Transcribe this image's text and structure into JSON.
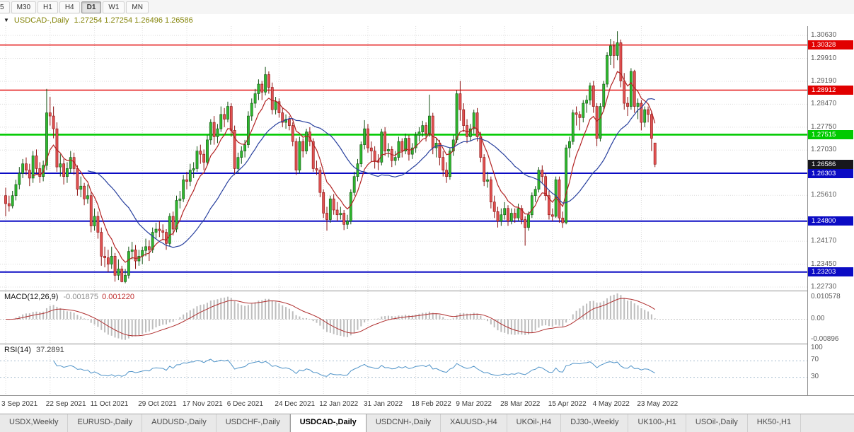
{
  "header": {
    "symbol_label": "USDCAD-,Daily",
    "ohlc": "1.27254 1.27254 1.26496 1.26586"
  },
  "toolbar": {
    "timeframes": [
      "5",
      "M30",
      "H1",
      "H4",
      "D1",
      "W1",
      "MN"
    ],
    "active": "D1"
  },
  "chart_data": {
    "type": "candlestick",
    "symbol": "USDCAD",
    "timeframe": "Daily",
    "range": {
      "min": 1.2262,
      "max": 1.3092
    },
    "axis_labels": [
      "1.30630",
      "1.29910",
      "1.29190",
      "1.28470",
      "1.27750",
      "1.27030",
      "1.25610",
      "1.24170",
      "1.23450",
      "1.22730"
    ],
    "grid_extra": [
      1.2631,
      1.2489
    ],
    "ticks": [
      [
        0,
        "3 Sep 2021"
      ],
      [
        13,
        "22 Sep 2021"
      ],
      [
        26,
        "11 Oct 2021"
      ],
      [
        40,
        "29 Oct 2021"
      ],
      [
        53,
        "17 Nov 2021"
      ],
      [
        66,
        "6 Dec 2021"
      ],
      [
        80,
        "24 Dec 2021"
      ],
      [
        93,
        "12 Jan 2022"
      ],
      [
        106,
        "31 Jan 2022"
      ],
      [
        120,
        "18 Feb 2022"
      ],
      [
        133,
        "9 Mar 2022"
      ],
      [
        146,
        "28 Mar 2022"
      ],
      [
        160,
        "15 Apr 2022"
      ],
      [
        173,
        "4 May 2022"
      ],
      [
        186,
        "23 May 2022"
      ]
    ],
    "hlines": [
      {
        "price": 1.30328,
        "label": "1.30328",
        "color": "#e10000",
        "width": 1.4
      },
      {
        "price": 1.28912,
        "label": "1.28912",
        "color": "#e10000",
        "width": 1.4
      },
      {
        "price": 1.27515,
        "label": "1.27515",
        "color": "#00ca00",
        "width": 2.6
      },
      {
        "price": 1.26303,
        "label": "1.26303",
        "color": "#0b0bc4",
        "width": 2
      },
      {
        "price": 1.248,
        "label": "1.24800",
        "color": "#0b0bc4",
        "width": 2
      },
      {
        "price": 1.23203,
        "label": "1.23203",
        "color": "#0b0bc4",
        "width": 2
      }
    ],
    "current_price": {
      "price": 1.26586,
      "label": "1.26586",
      "color": "#17171c"
    },
    "ma": {
      "fast": {
        "period": 8,
        "color": "#b22222"
      },
      "slow": {
        "period": 25,
        "color": "#28409e"
      }
    },
    "up_color": "#2eb82e",
    "up_border": "#145214",
    "down_color": "#e05252",
    "down_border": "#8c1010",
    "candles": [
      [
        1.256,
        1.2585,
        1.2495,
        1.2535
      ],
      [
        1.2535,
        1.256,
        1.251,
        1.2528
      ],
      [
        1.2528,
        1.2575,
        1.252,
        1.256
      ],
      [
        1.256,
        1.261,
        1.2545,
        1.2595
      ],
      [
        1.2595,
        1.265,
        1.258,
        1.263
      ],
      [
        1.263,
        1.2675,
        1.2615,
        1.266
      ],
      [
        1.266,
        1.268,
        1.2625,
        1.264
      ],
      [
        1.264,
        1.266,
        1.259,
        1.2615
      ],
      [
        1.2615,
        1.27,
        1.26,
        1.2685
      ],
      [
        1.2685,
        1.2705,
        1.263,
        1.2645
      ],
      [
        1.2645,
        1.2665,
        1.26,
        1.262
      ],
      [
        1.262,
        1.267,
        1.2605,
        1.2655
      ],
      [
        1.2655,
        1.2895,
        1.264,
        1.282
      ],
      [
        1.282,
        1.287,
        1.278,
        1.281
      ],
      [
        1.281,
        1.284,
        1.274,
        1.277
      ],
      [
        1.277,
        1.279,
        1.2635,
        1.265
      ],
      [
        1.265,
        1.269,
        1.262,
        1.266
      ],
      [
        1.266,
        1.2675,
        1.2595,
        1.262
      ],
      [
        1.262,
        1.2665,
        1.26,
        1.2645
      ],
      [
        1.2645,
        1.27,
        1.263,
        1.268
      ],
      [
        1.268,
        1.2695,
        1.2625,
        1.2645
      ],
      [
        1.2645,
        1.2655,
        1.256,
        1.258
      ],
      [
        1.258,
        1.262,
        1.2555,
        1.259
      ],
      [
        1.259,
        1.26,
        1.253,
        1.255
      ],
      [
        1.255,
        1.2595,
        1.2535,
        1.256
      ],
      [
        1.256,
        1.257,
        1.2445,
        1.2465
      ],
      [
        1.2465,
        1.252,
        1.245,
        1.2495
      ],
      [
        1.2495,
        1.251,
        1.2425,
        1.2445
      ],
      [
        1.2445,
        1.246,
        1.234,
        1.237
      ],
      [
        1.237,
        1.24,
        1.2335,
        1.2365
      ],
      [
        1.2365,
        1.239,
        1.232,
        1.2345
      ],
      [
        1.2345,
        1.24,
        1.233,
        1.237
      ],
      [
        1.237,
        1.238,
        1.229,
        1.231
      ],
      [
        1.231,
        1.236,
        1.2295,
        1.233
      ],
      [
        1.233,
        1.234,
        1.2288,
        1.229
      ],
      [
        1.229,
        1.233,
        1.2285,
        1.231
      ],
      [
        1.231,
        1.24,
        1.23,
        1.2385
      ],
      [
        1.2385,
        1.2415,
        1.236,
        1.239
      ],
      [
        1.239,
        1.2405,
        1.233,
        1.2355
      ],
      [
        1.2355,
        1.239,
        1.234,
        1.237
      ],
      [
        1.237,
        1.24,
        1.2345,
        1.2388
      ],
      [
        1.2388,
        1.2425,
        1.237,
        1.24
      ],
      [
        1.24,
        1.242,
        1.2355,
        1.239
      ],
      [
        1.239,
        1.246,
        1.238,
        1.2445
      ],
      [
        1.2445,
        1.2475,
        1.2425,
        1.2455
      ],
      [
        1.2455,
        1.248,
        1.243,
        1.245
      ],
      [
        1.245,
        1.247,
        1.242,
        1.2445
      ],
      [
        1.2445,
        1.2455,
        1.239,
        1.241
      ],
      [
        1.241,
        1.2505,
        1.24,
        1.2495
      ],
      [
        1.2495,
        1.251,
        1.2435,
        1.2455
      ],
      [
        1.2455,
        1.256,
        1.2445,
        1.2545
      ],
      [
        1.2545,
        1.2575,
        1.252,
        1.255
      ],
      [
        1.255,
        1.2625,
        1.254,
        1.261
      ],
      [
        1.261,
        1.2635,
        1.258,
        1.2605
      ],
      [
        1.2605,
        1.266,
        1.259,
        1.264
      ],
      [
        1.264,
        1.2665,
        1.2615,
        1.2645
      ],
      [
        1.2645,
        1.2715,
        1.2635,
        1.27
      ],
      [
        1.27,
        1.272,
        1.266,
        1.269
      ],
      [
        1.269,
        1.2705,
        1.264,
        1.2665
      ],
      [
        1.2665,
        1.275,
        1.2655,
        1.2735
      ],
      [
        1.2735,
        1.28,
        1.272,
        1.279
      ],
      [
        1.279,
        1.281,
        1.272,
        1.2745
      ],
      [
        1.2745,
        1.2785,
        1.2725,
        1.277
      ],
      [
        1.277,
        1.284,
        1.276,
        1.2815
      ],
      [
        1.2815,
        1.2835,
        1.2775,
        1.28
      ],
      [
        1.28,
        1.2855,
        1.279,
        1.284
      ],
      [
        1.284,
        1.285,
        1.2745,
        1.2765
      ],
      [
        1.2765,
        1.278,
        1.2625,
        1.2645
      ],
      [
        1.2645,
        1.2695,
        1.263,
        1.268
      ],
      [
        1.268,
        1.2715,
        1.266,
        1.27
      ],
      [
        1.27,
        1.2735,
        1.268,
        1.272
      ],
      [
        1.272,
        1.2825,
        1.271,
        1.281
      ],
      [
        1.281,
        1.2865,
        1.2795,
        1.285
      ],
      [
        1.285,
        1.2895,
        1.2835,
        1.288
      ],
      [
        1.288,
        1.2925,
        1.286,
        1.291
      ],
      [
        1.291,
        1.292,
        1.286,
        1.2885
      ],
      [
        1.2885,
        1.2964,
        1.2875,
        1.294
      ],
      [
        1.294,
        1.295,
        1.288,
        1.29
      ],
      [
        1.29,
        1.2915,
        1.2815,
        1.283
      ],
      [
        1.283,
        1.287,
        1.2815,
        1.2855
      ],
      [
        1.2855,
        1.2865,
        1.2805,
        1.282
      ],
      [
        1.282,
        1.2835,
        1.2775,
        1.279
      ],
      [
        1.279,
        1.2815,
        1.277,
        1.28
      ],
      [
        1.28,
        1.281,
        1.2765,
        1.278
      ],
      [
        1.278,
        1.279,
        1.2715,
        1.273
      ],
      [
        1.273,
        1.274,
        1.2625,
        1.264
      ],
      [
        1.264,
        1.2745,
        1.263,
        1.273
      ],
      [
        1.273,
        1.274,
        1.268,
        1.27
      ],
      [
        1.27,
        1.277,
        1.269,
        1.276
      ],
      [
        1.276,
        1.2775,
        1.2715,
        1.273
      ],
      [
        1.273,
        1.274,
        1.2635,
        1.2645
      ],
      [
        1.2645,
        1.267,
        1.2625,
        1.264
      ],
      [
        1.264,
        1.265,
        1.2555,
        1.257
      ],
      [
        1.257,
        1.258,
        1.249,
        1.2505
      ],
      [
        1.2505,
        1.2525,
        1.245,
        1.2485
      ],
      [
        1.2485,
        1.256,
        1.2475,
        1.255
      ],
      [
        1.255,
        1.2565,
        1.25,
        1.2515
      ],
      [
        1.2515,
        1.254,
        1.248,
        1.25
      ],
      [
        1.25,
        1.2525,
        1.2485,
        1.2505
      ],
      [
        1.2505,
        1.2515,
        1.2452,
        1.247
      ],
      [
        1.247,
        1.25,
        1.2455,
        1.248
      ],
      [
        1.248,
        1.258,
        1.247,
        1.257
      ],
      [
        1.257,
        1.2635,
        1.256,
        1.262
      ],
      [
        1.262,
        1.2675,
        1.2605,
        1.266
      ],
      [
        1.266,
        1.273,
        1.265,
        1.272
      ],
      [
        1.272,
        1.2797,
        1.2705,
        1.277
      ],
      [
        1.277,
        1.2785,
        1.2695,
        1.271
      ],
      [
        1.271,
        1.273,
        1.2665,
        1.27
      ],
      [
        1.27,
        1.2715,
        1.2645,
        1.267
      ],
      [
        1.267,
        1.269,
        1.264,
        1.2665
      ],
      [
        1.2665,
        1.277,
        1.2655,
        1.276
      ],
      [
        1.276,
        1.2775,
        1.2685,
        1.27
      ],
      [
        1.27,
        1.2725,
        1.268,
        1.2705
      ],
      [
        1.2705,
        1.2715,
        1.265,
        1.267
      ],
      [
        1.267,
        1.27,
        1.2655,
        1.268
      ],
      [
        1.268,
        1.2745,
        1.267,
        1.273
      ],
      [
        1.273,
        1.274,
        1.268,
        1.27
      ],
      [
        1.27,
        1.2755,
        1.269,
        1.274
      ],
      [
        1.274,
        1.275,
        1.267,
        1.269
      ],
      [
        1.269,
        1.2725,
        1.2675,
        1.271
      ],
      [
        1.271,
        1.276,
        1.2695,
        1.275
      ],
      [
        1.275,
        1.2775,
        1.273,
        1.276
      ],
      [
        1.276,
        1.2795,
        1.2745,
        1.278
      ],
      [
        1.278,
        1.279,
        1.273,
        1.2755
      ],
      [
        1.2755,
        1.2877,
        1.2745,
        1.281
      ],
      [
        1.281,
        1.282,
        1.269,
        1.271
      ],
      [
        1.271,
        1.274,
        1.268,
        1.2725
      ],
      [
        1.2725,
        1.2735,
        1.2655,
        1.268
      ],
      [
        1.268,
        1.27,
        1.262,
        1.264
      ],
      [
        1.264,
        1.2665,
        1.26,
        1.262
      ],
      [
        1.262,
        1.271,
        1.261,
        1.27
      ],
      [
        1.27,
        1.275,
        1.2685,
        1.2735
      ],
      [
        1.2735,
        1.289,
        1.2725,
        1.288
      ],
      [
        1.288,
        1.292,
        1.2795,
        1.283
      ],
      [
        1.283,
        1.285,
        1.276,
        1.278
      ],
      [
        1.278,
        1.28,
        1.2725,
        1.2745
      ],
      [
        1.2745,
        1.2785,
        1.273,
        1.277
      ],
      [
        1.277,
        1.283,
        1.2755,
        1.282
      ],
      [
        1.282,
        1.2835,
        1.273,
        1.2745
      ],
      [
        1.2745,
        1.276,
        1.2665,
        1.268
      ],
      [
        1.268,
        1.269,
        1.259,
        1.2605
      ],
      [
        1.2605,
        1.2635,
        1.2585,
        1.261
      ],
      [
        1.261,
        1.262,
        1.252,
        1.254
      ],
      [
        1.254,
        1.256,
        1.249,
        1.251
      ],
      [
        1.251,
        1.2525,
        1.246,
        1.248
      ],
      [
        1.248,
        1.252,
        1.2465,
        1.25
      ],
      [
        1.25,
        1.254,
        1.2485,
        1.252
      ],
      [
        1.252,
        1.253,
        1.2465,
        1.248
      ],
      [
        1.248,
        1.252,
        1.247,
        1.2505
      ],
      [
        1.2505,
        1.252,
        1.2475,
        1.249
      ],
      [
        1.249,
        1.2535,
        1.248,
        1.252
      ],
      [
        1.252,
        1.253,
        1.247,
        1.2485
      ],
      [
        1.2485,
        1.2495,
        1.2403,
        1.246
      ],
      [
        1.246,
        1.251,
        1.245,
        1.25
      ],
      [
        1.25,
        1.257,
        1.249,
        1.256
      ],
      [
        1.256,
        1.259,
        1.254,
        1.258
      ],
      [
        1.258,
        1.265,
        1.257,
        1.264
      ],
      [
        1.264,
        1.2655,
        1.26,
        1.262
      ],
      [
        1.262,
        1.263,
        1.2545,
        1.256
      ],
      [
        1.256,
        1.2575,
        1.2485,
        1.25
      ],
      [
        1.25,
        1.252,
        1.248,
        1.2495
      ],
      [
        1.2495,
        1.262,
        1.249,
        1.261
      ],
      [
        1.261,
        1.262,
        1.2475,
        1.249
      ],
      [
        1.249,
        1.251,
        1.2459,
        1.2475
      ],
      [
        1.2475,
        1.272,
        1.247,
        1.271
      ],
      [
        1.271,
        1.2745,
        1.268,
        1.273
      ],
      [
        1.273,
        1.283,
        1.272,
        1.282
      ],
      [
        1.282,
        1.284,
        1.278,
        1.2815
      ],
      [
        1.2815,
        1.2825,
        1.2765,
        1.2805
      ],
      [
        1.2805,
        1.286,
        1.279,
        1.285
      ],
      [
        1.285,
        1.2875,
        1.282,
        1.286
      ],
      [
        1.286,
        1.2915,
        1.2845,
        1.2905
      ],
      [
        1.2905,
        1.292,
        1.282,
        1.284
      ],
      [
        1.284,
        1.285,
        1.2715,
        1.274
      ],
      [
        1.274,
        1.285,
        1.273,
        1.284
      ],
      [
        1.284,
        1.292,
        1.2825,
        1.291
      ],
      [
        1.291,
        1.301,
        1.29,
        1.3
      ],
      [
        1.3,
        1.3052,
        1.297,
        1.303
      ],
      [
        1.303,
        1.3045,
        1.296,
        1.3
      ],
      [
        1.3,
        1.3076,
        1.2985,
        1.304
      ],
      [
        1.304,
        1.305,
        1.29,
        1.292
      ],
      [
        1.292,
        1.2945,
        1.283,
        1.285
      ],
      [
        1.285,
        1.287,
        1.281,
        1.284
      ],
      [
        1.284,
        1.296,
        1.283,
        1.295
      ],
      [
        1.295,
        1.2955,
        1.282,
        1.284
      ],
      [
        1.284,
        1.2865,
        1.28,
        1.285
      ],
      [
        1.285,
        1.286,
        1.2765,
        1.279
      ],
      [
        1.279,
        1.284,
        1.2775,
        1.283
      ],
      [
        1.283,
        1.284,
        1.279,
        1.2815
      ],
      [
        1.2815,
        1.2825,
        1.27,
        1.274
      ],
      [
        1.27254,
        1.27254,
        1.26496,
        1.26586
      ]
    ]
  },
  "indicators": {
    "macd": {
      "label": "MACD(12,26,9)",
      "value_main": "-0.001875",
      "value_signal": "0.001220",
      "fast": 12,
      "slow": 26,
      "signal": 9,
      "axis": [
        "0.010578",
        "0.00",
        "-0.00896"
      ],
      "hist_color": "#bdbdbd",
      "signal_color": "#b03030"
    },
    "rsi": {
      "label": "RSI(14)",
      "value": "37.2891",
      "period": 14,
      "levels": [
        70,
        30
      ],
      "axis": [
        "100",
        "70",
        "30"
      ],
      "color": "#4f93c8"
    }
  },
  "tabs": {
    "active_index": 4,
    "items": [
      "USDX,Weekly",
      "EURUSD-,Daily",
      "AUDUSD-,Daily",
      "USDCHF-,Daily",
      "USDCAD-,Daily",
      "USDCNH-,Daily",
      "XAUUSD-,H4",
      "UKOil-,H4",
      "DJ30-,Weekly",
      "UK100-,H1",
      "USOil-,Daily",
      "HK50-,H1"
    ]
  }
}
